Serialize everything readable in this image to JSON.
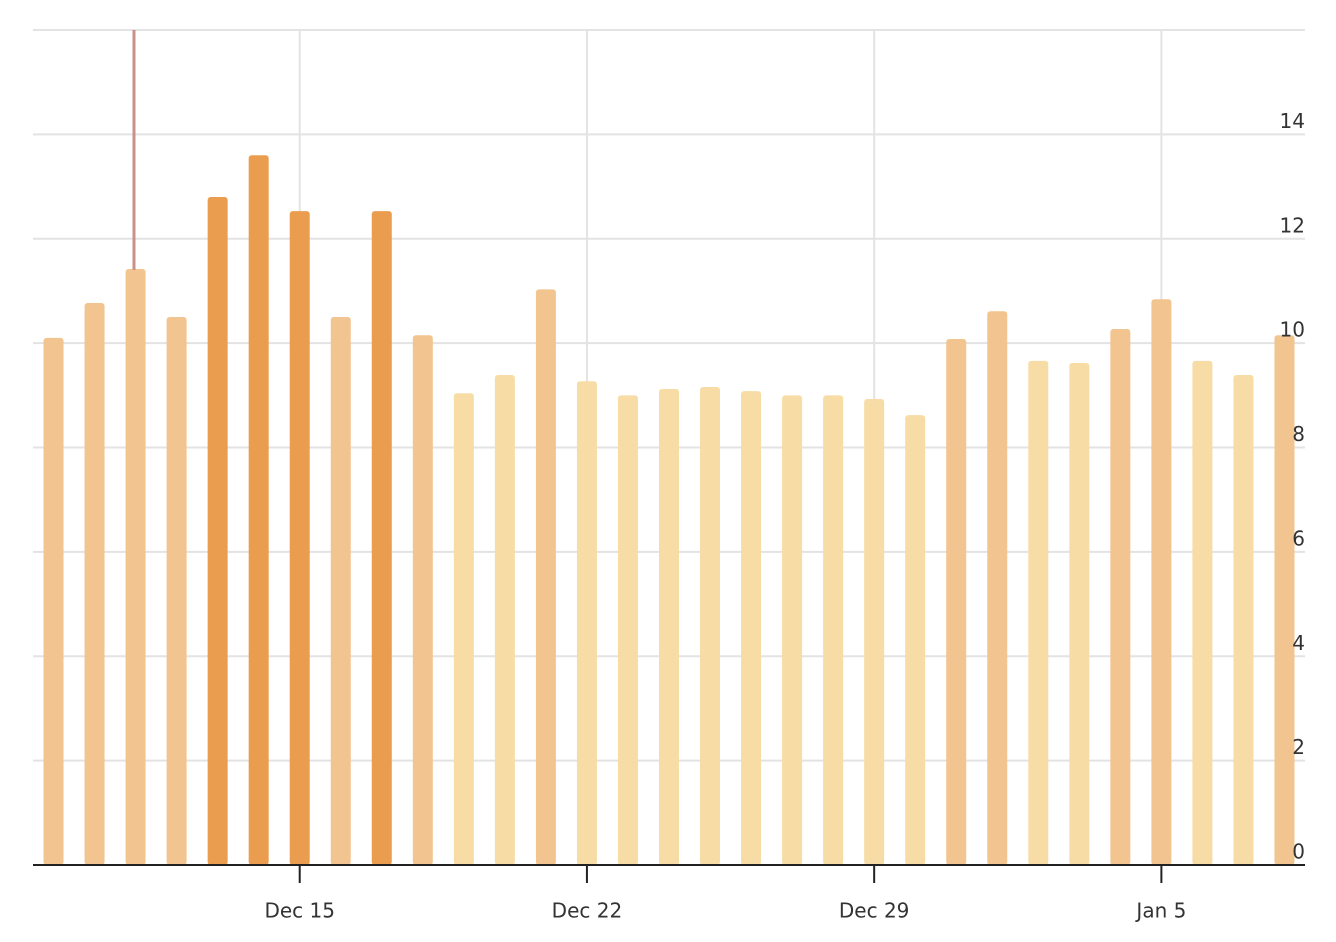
{
  "chart_data": {
    "type": "bar",
    "categories": [
      null,
      null,
      null,
      null,
      null,
      null,
      "Dec 15",
      null,
      null,
      null,
      null,
      null,
      null,
      "Dec 22",
      null,
      null,
      null,
      null,
      null,
      null,
      "Dec 29",
      null,
      null,
      null,
      null,
      null,
      null,
      "Jan 5",
      null,
      null,
      null
    ],
    "values": [
      10.1,
      10.77,
      11.42,
      10.5,
      12.8,
      13.6,
      12.53,
      10.5,
      12.53,
      10.15,
      9.04,
      9.39,
      11.03,
      9.27,
      9.0,
      9.12,
      9.16,
      9.08,
      9.0,
      9.0,
      8.93,
      8.62,
      10.08,
      10.61,
      9.66,
      9.62,
      10.27,
      10.84,
      9.66,
      9.39,
      10.15
    ],
    "colors": [
      "#f2c48f",
      "#f2c48f",
      "#f2c48f",
      "#f2c48f",
      "#eb9d4f",
      "#eb9d4f",
      "#eb9d4f",
      "#f2c48f",
      "#eb9d4f",
      "#f2c48f",
      "#f7dca6",
      "#f7dca6",
      "#f2c48f",
      "#f7dca6",
      "#f7dca6",
      "#f7dca6",
      "#f7dca6",
      "#f7dca6",
      "#f7dca6",
      "#f7dca6",
      "#f7dca6",
      "#f7dca6",
      "#f2c48f",
      "#f2c48f",
      "#f7dca6",
      "#f7dca6",
      "#f2c48f",
      "#f2c48f",
      "#f7dca6",
      "#f7dca6",
      "#f2c48f"
    ],
    "ylim": [
      0,
      16
    ],
    "yticks": [
      0,
      2,
      4,
      6,
      8,
      10,
      12,
      14
    ],
    "grid": true
  }
}
